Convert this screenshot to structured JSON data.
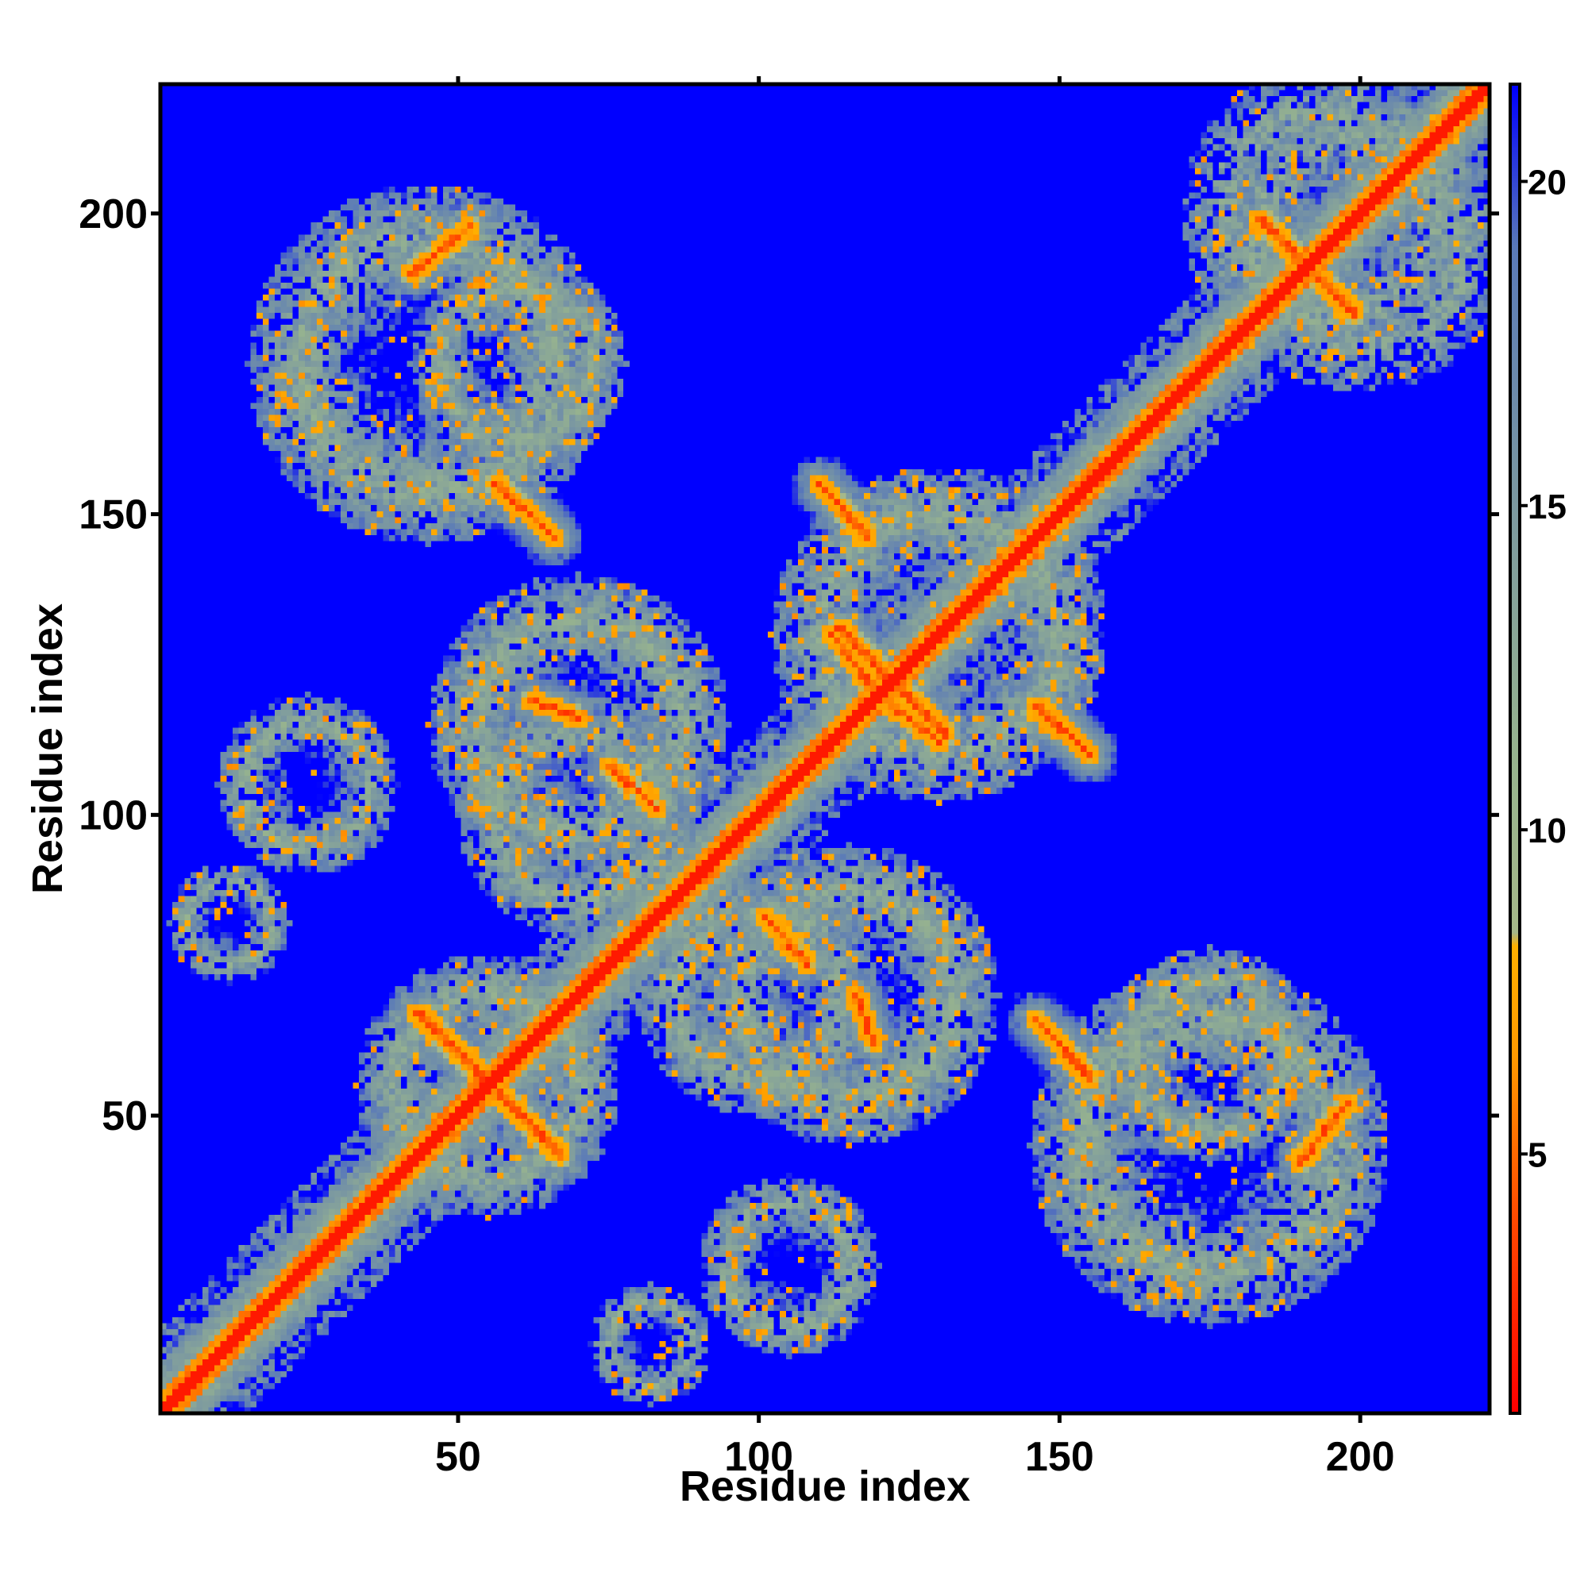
{
  "chart_data": {
    "type": "heatmap",
    "title": "",
    "xlabel": "Residue index",
    "ylabel": "Residue index",
    "n_residues": 221,
    "xlim": [
      1,
      221
    ],
    "ylim": [
      1,
      221
    ],
    "x_ticks": [
      50,
      100,
      150,
      200
    ],
    "y_ticks": [
      50,
      100,
      150,
      200
    ],
    "colorbar": {
      "range": [
        1,
        21.5
      ],
      "ticks": [
        5,
        10,
        15,
        20
      ],
      "stops": [
        {
          "value": 1,
          "color": "#ff0000"
        },
        {
          "value": 4,
          "color": "#ff4a00"
        },
        {
          "value": 6.5,
          "color": "#ff9a00"
        },
        {
          "value": 8.2,
          "color": "#ffb000"
        },
        {
          "value": 8.4,
          "color": "#a6b88a"
        },
        {
          "value": 11,
          "color": "#98b48e"
        },
        {
          "value": 15,
          "color": "#7c99a0"
        },
        {
          "value": 19,
          "color": "#5a7ab8"
        },
        {
          "value": 21.5,
          "color": "#0000ff"
        }
      ]
    },
    "background_color": "#0000ff",
    "features": [
      {
        "kind": "diagonal",
        "from": 1,
        "to": 221
      },
      {
        "kind": "antidiagonal",
        "center": [
          55,
          55
        ],
        "half_length": 12
      },
      {
        "kind": "antidiagonal",
        "center": [
          122,
          122
        ],
        "half_length": 9
      },
      {
        "kind": "antidiagonal",
        "center": [
          191,
          191
        ],
        "half_length": 8
      },
      {
        "kind": "parallel",
        "from": [
          42,
          190
        ],
        "to": [
          52,
          198
        ]
      },
      {
        "kind": "parallel",
        "from": [
          190,
          42
        ],
        "to": [
          198,
          52
        ]
      },
      {
        "kind": "antiparallel",
        "from": [
          56,
          155
        ],
        "to": [
          66,
          146
        ]
      },
      {
        "kind": "antiparallel",
        "from": [
          146,
          66
        ],
        "to": [
          155,
          56
        ]
      },
      {
        "kind": "antiparallel",
        "from": [
          110,
          155
        ],
        "to": [
          118,
          146
        ]
      },
      {
        "kind": "antiparallel",
        "from": [
          146,
          118
        ],
        "to": [
          155,
          110
        ]
      },
      {
        "kind": "antiparallel",
        "from": [
          112,
          130
        ],
        "to": [
          118,
          122
        ]
      },
      {
        "kind": "antiparallel",
        "from": [
          130,
          112
        ],
        "to": [
          122,
          118
        ]
      },
      {
        "kind": "antiparallel",
        "from": [
          146,
          118
        ],
        "to": [
          155,
          110
        ]
      },
      {
        "kind": "antiparallel",
        "from": [
          101,
          83
        ],
        "to": [
          108,
          75
        ]
      },
      {
        "kind": "antiparallel",
        "from": [
          83,
          101
        ],
        "to": [
          75,
          108
        ]
      },
      {
        "kind": "parallel",
        "from": [
          62,
          119
        ],
        "to": [
          70,
          116
        ]
      },
      {
        "kind": "parallel",
        "from": [
          119,
          62
        ],
        "to": [
          116,
          70
        ]
      }
    ],
    "clusters": [
      {
        "center": [
          45,
          175
        ],
        "radius": 30
      },
      {
        "center": [
          175,
          45
        ],
        "radius": 30
      },
      {
        "center": [
          70,
          115
        ],
        "radius": 25
      },
      {
        "center": [
          115,
          70
        ],
        "radius": 25
      },
      {
        "center": [
          130,
          130
        ],
        "radius": 28
      },
      {
        "center": [
          55,
          55
        ],
        "radius": 22
      },
      {
        "center": [
          200,
          195
        ],
        "radius": 25
      },
      {
        "center": [
          25,
          105
        ],
        "radius": 15
      },
      {
        "center": [
          105,
          25
        ],
        "radius": 15
      },
      {
        "center": [
          12,
          82
        ],
        "radius": 10
      },
      {
        "center": [
          82,
          12
        ],
        "radius": 10
      },
      {
        "center": [
          100,
          70
        ],
        "radius": 20
      },
      {
        "center": [
          70,
          100
        ],
        "radius": 20
      },
      {
        "center": [
          175,
          60
        ],
        "radius": 18
      },
      {
        "center": [
          60,
          175
        ],
        "radius": 18
      }
    ]
  }
}
